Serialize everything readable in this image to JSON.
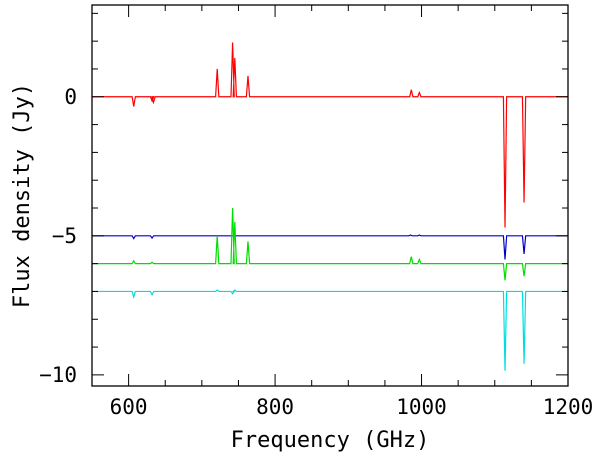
{
  "chart_data": {
    "type": "line",
    "title": "",
    "xlabel": "Frequency (GHz)",
    "ylabel": "Flux density (Jy)",
    "xlim": [
      550,
      1200
    ],
    "ylim": [
      -10.4,
      3.3
    ],
    "grid": false,
    "legend": "none",
    "x_ticks": [
      600,
      800,
      1000,
      1200
    ],
    "x_tick_labels": [
      "600",
      "800",
      "1000",
      "1200"
    ],
    "y_ticks": [
      0,
      -5,
      -10
    ],
    "y_tick_labels": [
      "0",
      "−5",
      "−10"
    ],
    "series": [
      {
        "color": "#ff0000",
        "baseline": 0,
        "features": [
          {
            "x": 607,
            "y": -0.35
          },
          {
            "x": 632,
            "y": -0.15
          },
          {
            "x": 634,
            "y": -0.2
          },
          {
            "x": 721,
            "y": 1.0
          },
          {
            "x": 742,
            "y": 1.95
          },
          {
            "x": 745,
            "y": 1.4
          },
          {
            "x": 763,
            "y": 0.75
          },
          {
            "x": 986,
            "y": 0.25
          },
          {
            "x": 997,
            "y": 0.15
          },
          {
            "x": 1114,
            "y": -4.7
          },
          {
            "x": 1140,
            "y": -3.8
          }
        ]
      },
      {
        "color": "#0000cc",
        "baseline": -5,
        "features": [
          {
            "x": 607,
            "y": -5.1
          },
          {
            "x": 632,
            "y": -5.08
          },
          {
            "x": 985,
            "y": -4.97
          },
          {
            "x": 997,
            "y": -4.97
          },
          {
            "x": 1114,
            "y": -5.85
          },
          {
            "x": 1140,
            "y": -5.65
          }
        ]
      },
      {
        "color": "#00dd00",
        "baseline": -6,
        "features": [
          {
            "x": 607,
            "y": -5.9
          },
          {
            "x": 632,
            "y": -5.95
          },
          {
            "x": 721,
            "y": -5.0
          },
          {
            "x": 742,
            "y": -4.0
          },
          {
            "x": 745,
            "y": -4.5
          },
          {
            "x": 763,
            "y": -5.2
          },
          {
            "x": 986,
            "y": -5.75
          },
          {
            "x": 997,
            "y": -5.85
          },
          {
            "x": 1114,
            "y": -6.6
          },
          {
            "x": 1140,
            "y": -6.45
          }
        ]
      },
      {
        "color": "#00dddd",
        "baseline": -7,
        "features": [
          {
            "x": 607,
            "y": -7.2
          },
          {
            "x": 632,
            "y": -7.12
          },
          {
            "x": 721,
            "y": -6.95
          },
          {
            "x": 742,
            "y": -7.08
          },
          {
            "x": 745,
            "y": -6.95
          },
          {
            "x": 1114,
            "y": -9.85
          },
          {
            "x": 1140,
            "y": -9.6
          }
        ]
      }
    ]
  }
}
